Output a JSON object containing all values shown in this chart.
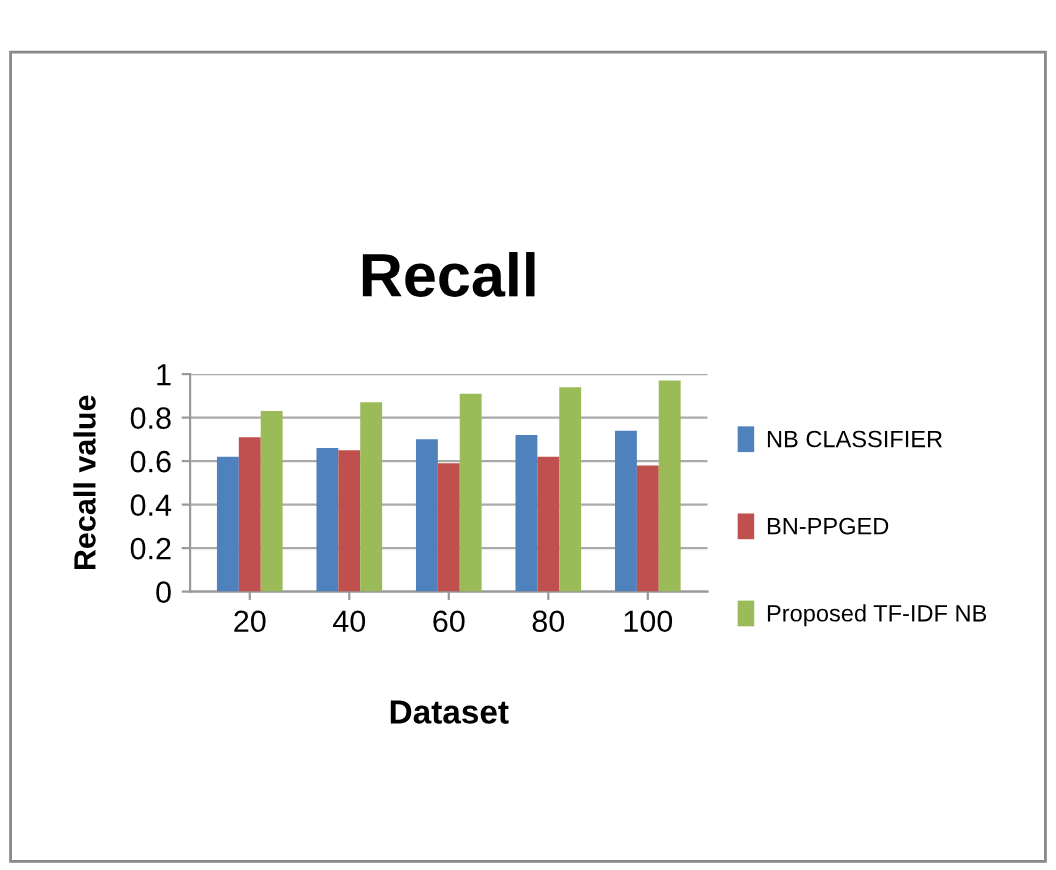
{
  "chart_data": {
    "type": "bar",
    "title": "Recall",
    "xlabel": "Dataset",
    "ylabel": "Recall value",
    "categories": [
      "20",
      "40",
      "60",
      "80",
      "100"
    ],
    "series": [
      {
        "name": "NB CLASSIFIER",
        "color": "#4f81bd",
        "values": [
          0.62,
          0.66,
          0.7,
          0.72,
          0.74
        ]
      },
      {
        "name": "BN-PPGED",
        "color": "#c0504d",
        "values": [
          0.71,
          0.65,
          0.59,
          0.62,
          0.58
        ]
      },
      {
        "name": "Proposed TF-IDF NB",
        "color": "#9bbb59",
        "values": [
          0.83,
          0.87,
          0.91,
          0.94,
          0.97
        ]
      }
    ],
    "ylim": [
      0,
      1
    ],
    "yticks": [
      0,
      0.2,
      0.4,
      0.6,
      0.8,
      1
    ],
    "grid": "y",
    "legend": "right"
  }
}
